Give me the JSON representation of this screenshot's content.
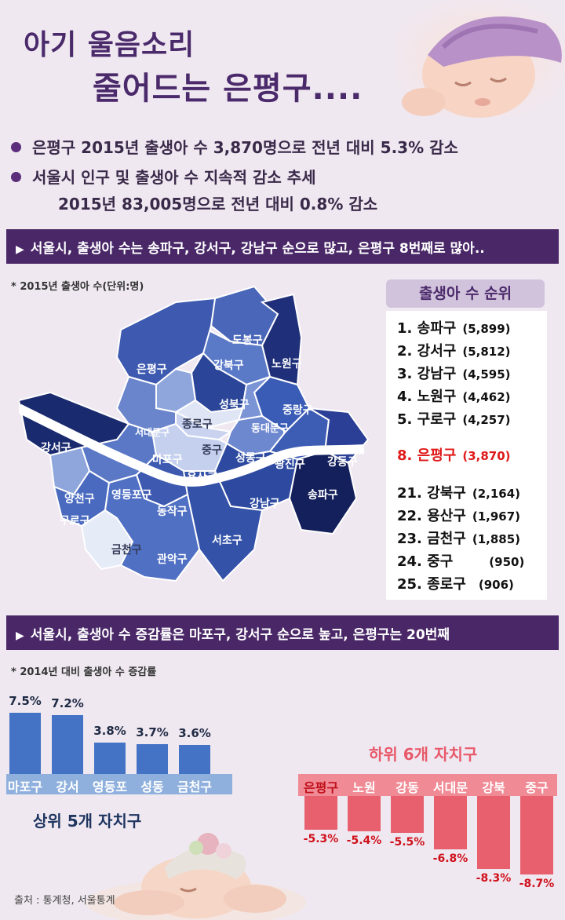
{
  "title": {
    "line1": "아기 울음소리",
    "line2": "줄어드는 은평구...."
  },
  "bullets": [
    {
      "text": "은평구 2015년 출생아 수  3,870명으로 전년 대비 5.3% 감소"
    },
    {
      "text": "서울시 인구 및 출생아 수 지속적 감소 추세",
      "sub": "2015년  83,005명으로 전년 대비 0.8% 감소"
    }
  ],
  "banner1": "서울시,  출생아 수는 송파구, 강서구, 강남구 순으로 많고,  은평구 8번째로   많아..",
  "map_note": "* 2015년 출생아 수(단위:명)",
  "districts": {
    "dobong": "도봉구",
    "nowon": "노원구",
    "gangbuk": "강북구",
    "eunpyeong": "은평구",
    "seongbuk": "성북구",
    "jungnang": "중랑구",
    "seodaemun": "서대문구",
    "jongno": "종로구",
    "dongdaemun": "동대문구",
    "gangseo": "강서구",
    "mapo": "마포구",
    "jung": "중구",
    "seongdong": "성동구",
    "gwangjin": "광진구",
    "gangdong": "강동구",
    "yongsan": "용산구",
    "yangcheon": "양천구",
    "yeongdeungpo": "영등포구",
    "dongjak": "동작구",
    "guro": "구로구",
    "songpa": "송파구",
    "gangnam": "강남구",
    "seocho": "서초구",
    "geumcheon": "금천구",
    "gwanak": "관악구"
  },
  "ranking": {
    "title": "출생아 수 순위",
    "items": [
      {
        "rank": "1.",
        "name": "송파구",
        "count": "(5,899)"
      },
      {
        "rank": "2.",
        "name": "강서구",
        "count": "(5,812)"
      },
      {
        "rank": "3.",
        "name": "강남구",
        "count": "(4,595)"
      },
      {
        "rank": "4.",
        "name": "노원구",
        "count": "(4,462)"
      },
      {
        "rank": "5.",
        "name": "구로구",
        "count": "(4,257)"
      },
      {
        "rank": "8.",
        "name": "은평구",
        "count": "(3,870)"
      },
      {
        "rank": "21.",
        "name": "강북구",
        "count": "(2,164)"
      },
      {
        "rank": "22.",
        "name": "용산구",
        "count": "(1,967)"
      },
      {
        "rank": "23.",
        "name": "금천구",
        "count": "(1,885)"
      },
      {
        "rank": "24.",
        "name": "중구",
        "count": "(950)"
      },
      {
        "rank": "25.",
        "name": "종로구",
        "count": "(906)"
      }
    ]
  },
  "banner2": "서울시,   출생아 수 증감률은  마포구, 강서구 순으로 높고,     은평구는 20번째",
  "chart_note": "* 2014년 대비 출생아 수 증감률",
  "chart_data": [
    {
      "type": "bar",
      "title": "상위 5개 자치구",
      "categories": [
        "마포구",
        "강서",
        "영등포",
        "성동",
        "금천구"
      ],
      "values": [
        7.5,
        7.2,
        3.8,
        3.7,
        3.6
      ],
      "labels": [
        "7.5%",
        "7.2%",
        "3.8%",
        "3.7%",
        "3.6%"
      ]
    },
    {
      "type": "bar",
      "title": "하위 6개 자치구",
      "categories": [
        "은평구",
        "노원",
        "강동",
        "서대문",
        "강북",
        "중구"
      ],
      "values": [
        -5.3,
        -5.4,
        -5.5,
        -6.8,
        -8.3,
        -8.7
      ],
      "labels": [
        "-5.3%",
        "-5.4%",
        "-5.5%",
        "-6.8%",
        "-8.3%",
        "-8.7%"
      ]
    }
  ],
  "source": "출처 : 통계청, 서울통계",
  "colors": {
    "purple": "#4a2868",
    "blue": "#4472c4",
    "red": "#e8606e",
    "highlight": "#e01919"
  }
}
